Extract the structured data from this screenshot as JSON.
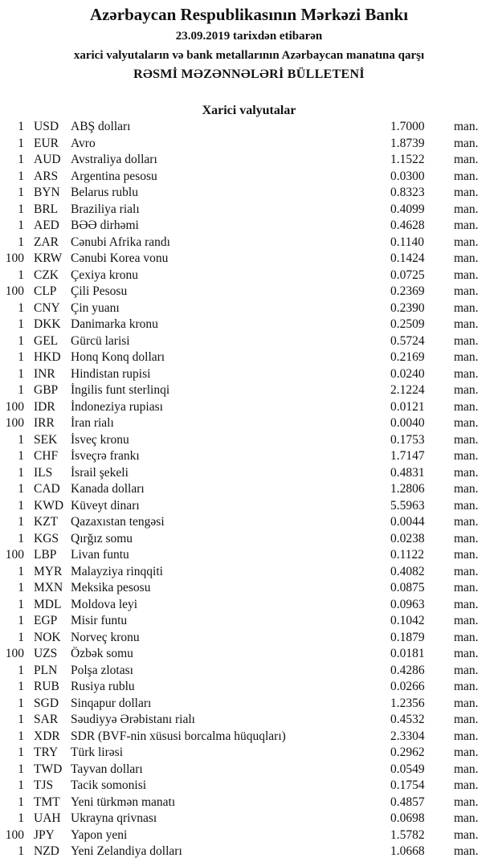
{
  "header": {
    "title": "Azərbaycan Respublikasının Mərkəzi Bankı",
    "date_line": "23.09.2019  tarixdən etibarən",
    "subtitle": "xarici valyutaların və bank metallarının Azərbaycan manatına qarşı",
    "bulletin": "RƏSMİ MƏZƏNNƏLƏRİ BÜLLETENİ"
  },
  "section": {
    "title": "Xarici valyutalar"
  },
  "rates": [
    {
      "qty": "1",
      "code": "USD",
      "name": "ABŞ dolları",
      "value": "1.7000",
      "unit": "man."
    },
    {
      "qty": "1",
      "code": "EUR",
      "name": "Avro",
      "value": "1.8739",
      "unit": "man."
    },
    {
      "qty": "1",
      "code": "AUD",
      "name": "Avstraliya dolları",
      "value": "1.1522",
      "unit": "man."
    },
    {
      "qty": "1",
      "code": "ARS",
      "name": "Argentina pesosu",
      "value": "0.0300",
      "unit": "man."
    },
    {
      "qty": "1",
      "code": "BYN",
      "name": "Belarus rublu",
      "value": "0.8323",
      "unit": "man."
    },
    {
      "qty": "1",
      "code": "BRL",
      "name": "Braziliya rialı",
      "value": "0.4099",
      "unit": "man."
    },
    {
      "qty": "1",
      "code": "AED",
      "name": "BƏƏ dirhəmi",
      "value": "0.4628",
      "unit": "man."
    },
    {
      "qty": "1",
      "code": "ZAR",
      "name": "Cənubi Afrika randı",
      "value": "0.1140",
      "unit": "man."
    },
    {
      "qty": "100",
      "code": "KRW",
      "name": "Cənubi Korea vonu",
      "value": "0.1424",
      "unit": "man."
    },
    {
      "qty": "1",
      "code": "CZK",
      "name": "Çexiya kronu",
      "value": "0.0725",
      "unit": "man."
    },
    {
      "qty": "100",
      "code": "CLP",
      "name": "Çili Pesosu",
      "value": "0.2369",
      "unit": "man."
    },
    {
      "qty": "1",
      "code": "CNY",
      "name": "Çin yuanı",
      "value": "0.2390",
      "unit": "man."
    },
    {
      "qty": "1",
      "code": "DKK",
      "name": "Danimarka kronu",
      "value": "0.2509",
      "unit": "man."
    },
    {
      "qty": "1",
      "code": "GEL",
      "name": "Gürcü larisi",
      "value": "0.5724",
      "unit": "man."
    },
    {
      "qty": "1",
      "code": "HKD",
      "name": "Honq Konq dolları",
      "value": "0.2169",
      "unit": "man."
    },
    {
      "qty": "1",
      "code": "INR",
      "name": "Hindistan rupisi",
      "value": "0.0240",
      "unit": "man."
    },
    {
      "qty": "1",
      "code": "GBP",
      "name": "İngilis funt sterlinqi",
      "value": "2.1224",
      "unit": "man."
    },
    {
      "qty": "100",
      "code": "IDR",
      "name": "İndoneziya rupiası",
      "value": "0.0121",
      "unit": "man."
    },
    {
      "qty": "100",
      "code": "IRR",
      "name": "İran rialı",
      "value": "0.0040",
      "unit": "man."
    },
    {
      "qty": "1",
      "code": "SEK",
      "name": "İsveç kronu",
      "value": "0.1753",
      "unit": "man."
    },
    {
      "qty": "1",
      "code": "CHF",
      "name": "İsveçrə frankı",
      "value": "1.7147",
      "unit": "man."
    },
    {
      "qty": "1",
      "code": "ILS",
      "name": "İsrail şekeli",
      "value": "0.4831",
      "unit": "man."
    },
    {
      "qty": "1",
      "code": "CAD",
      "name": "Kanada dolları",
      "value": "1.2806",
      "unit": "man."
    },
    {
      "qty": "1",
      "code": "KWD",
      "name": "Küveyt dinarı",
      "value": "5.5963",
      "unit": "man."
    },
    {
      "qty": "1",
      "code": "KZT",
      "name": "Qazaxıstan tengəsi",
      "value": "0.0044",
      "unit": "man."
    },
    {
      "qty": "1",
      "code": "KGS",
      "name": "Qırğız somu",
      "value": "0.0238",
      "unit": "man."
    },
    {
      "qty": "100",
      "code": "LBP",
      "name": "Livan funtu",
      "value": "0.1122",
      "unit": "man."
    },
    {
      "qty": "1",
      "code": "MYR",
      "name": "Malayziya rinqqiti",
      "value": "0.4082",
      "unit": "man."
    },
    {
      "qty": "1",
      "code": "MXN",
      "name": "Meksika pesosu",
      "value": "0.0875",
      "unit": "man."
    },
    {
      "qty": "1",
      "code": "MDL",
      "name": "Moldova leyi",
      "value": "0.0963",
      "unit": "man."
    },
    {
      "qty": "1",
      "code": "EGP",
      "name": "Misir funtu",
      "value": "0.1042",
      "unit": "man."
    },
    {
      "qty": "1",
      "code": "NOK",
      "name": "Norveç kronu",
      "value": "0.1879",
      "unit": "man."
    },
    {
      "qty": "100",
      "code": "UZS",
      "name": "Özbək somu",
      "value": "0.0181",
      "unit": "man."
    },
    {
      "qty": "1",
      "code": "PLN",
      "name": "Polşa zlotası",
      "value": "0.4286",
      "unit": "man."
    },
    {
      "qty": "1",
      "code": "RUB",
      "name": "Rusiya rublu",
      "value": "0.0266",
      "unit": "man."
    },
    {
      "qty": "1",
      "code": "SGD",
      "name": "Sinqapur dolları",
      "value": "1.2356",
      "unit": "man."
    },
    {
      "qty": "1",
      "code": "SAR",
      "name": "Səudiyyə Ərəbistanı rialı",
      "value": "0.4532",
      "unit": "man."
    },
    {
      "qty": "1",
      "code": "XDR",
      "name": "SDR (BVF-nin xüsusi borcalma hüquqları)",
      "value": "2.3304",
      "unit": "man."
    },
    {
      "qty": "1",
      "code": "TRY",
      "name": "Türk lirəsi",
      "value": "0.2962",
      "unit": "man."
    },
    {
      "qty": "1",
      "code": "TWD",
      "name": "Tayvan dolları",
      "value": "0.0549",
      "unit": "man."
    },
    {
      "qty": "1",
      "code": "TJS",
      "name": "Tacik somonisi",
      "value": "0.1754",
      "unit": "man."
    },
    {
      "qty": "1",
      "code": "TMT",
      "name": "Yeni türkmən manatı",
      "value": "0.4857",
      "unit": "man."
    },
    {
      "qty": "1",
      "code": "UAH",
      "name": "Ukrayna qrivnası",
      "value": "0.0698",
      "unit": "man."
    },
    {
      "qty": "100",
      "code": "JPY",
      "name": "Yapon yeni",
      "value": "1.5782",
      "unit": "man."
    },
    {
      "qty": "1",
      "code": "NZD",
      "name": "Yeni Zelandiya dolları",
      "value": "1.0668",
      "unit": "man."
    }
  ]
}
